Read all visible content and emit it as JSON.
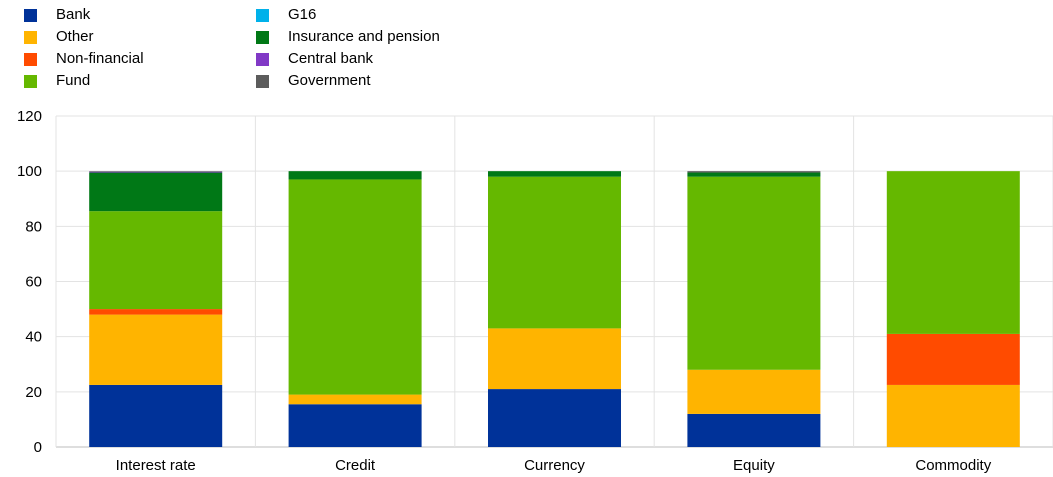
{
  "chart_data": {
    "type": "bar",
    "stacked": true,
    "title": "",
    "xlabel": "",
    "ylabel": "",
    "ylim": [
      0,
      120
    ],
    "yticks": [
      0,
      20,
      40,
      60,
      80,
      100,
      120
    ],
    "grid": "on",
    "legend_position": "top-left",
    "categories": [
      "Interest rate",
      "Credit",
      "Currency",
      "Equity",
      "Commodity"
    ],
    "series": [
      {
        "name": "Bank",
        "color": "#003299",
        "values": [
          22.5,
          15.5,
          21,
          12,
          0
        ]
      },
      {
        "name": "Other",
        "color": "#ffb400",
        "values": [
          25.5,
          3.5,
          22,
          16,
          22.5
        ]
      },
      {
        "name": "Non-financial",
        "color": "#ff4b00",
        "values": [
          2,
          0,
          0,
          0,
          18.5
        ]
      },
      {
        "name": "Fund",
        "color": "#65b800",
        "values": [
          35.5,
          78,
          55,
          70,
          59
        ]
      },
      {
        "name": "G16",
        "color": "#00b1ea",
        "values": [
          0,
          0,
          0,
          0,
          0
        ]
      },
      {
        "name": "Insurance and pension",
        "color": "#007816",
        "values": [
          14,
          3,
          2,
          1.5,
          0
        ]
      },
      {
        "name": "Central bank",
        "color": "#8139c6",
        "values": [
          0.3,
          0,
          0,
          0,
          0
        ]
      },
      {
        "name": "Government",
        "color": "#5c5c5c",
        "values": [
          0.2,
          0,
          0,
          0.5,
          0
        ]
      }
    ]
  }
}
